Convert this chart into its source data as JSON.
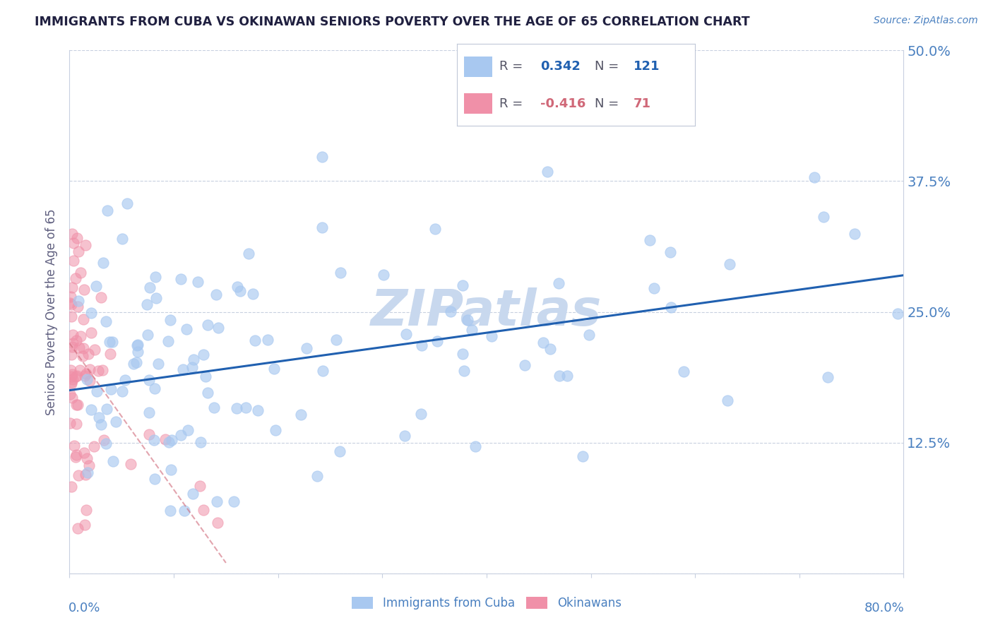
{
  "title": "IMMIGRANTS FROM CUBA VS OKINAWAN SENIORS POVERTY OVER THE AGE OF 65 CORRELATION CHART",
  "source": "Source: ZipAtlas.com",
  "ylabel": "Seniors Poverty Over the Age of 65",
  "xlim": [
    0.0,
    0.8
  ],
  "ylim": [
    0.0,
    0.5
  ],
  "legend_r_cuba": "0.342",
  "legend_n_cuba": "121",
  "legend_r_okinawa": "-0.416",
  "legend_n_okinawa": "71",
  "color_cuba": "#a8c8f0",
  "color_okinawa": "#f090a8",
  "trendline_color_cuba": "#2060b0",
  "trendline_color_okinawa": "#d06878",
  "legend_r_color_cuba": "#2060b0",
  "legend_r_color_okinawa": "#d06878",
  "watermark_color": "#c8d8ee",
  "background_color": "#ffffff",
  "tick_color": "#4a80c0",
  "ylabel_color": "#606080",
  "title_color": "#202040",
  "source_color": "#4a80c0",
  "legend_border_color": "#c0c8d8",
  "grid_color": "#c8d0e0",
  "spine_color": "#c8d0e0",
  "cuba_trendline_x0": 0.0,
  "cuba_trendline_y0": 0.175,
  "cuba_trendline_x1": 0.8,
  "cuba_trendline_y1": 0.285,
  "okinawa_trendline_x0": 0.0,
  "okinawa_trendline_y0": 0.22,
  "okinawa_trendline_x1": 0.15,
  "okinawa_trendline_y1": 0.01
}
